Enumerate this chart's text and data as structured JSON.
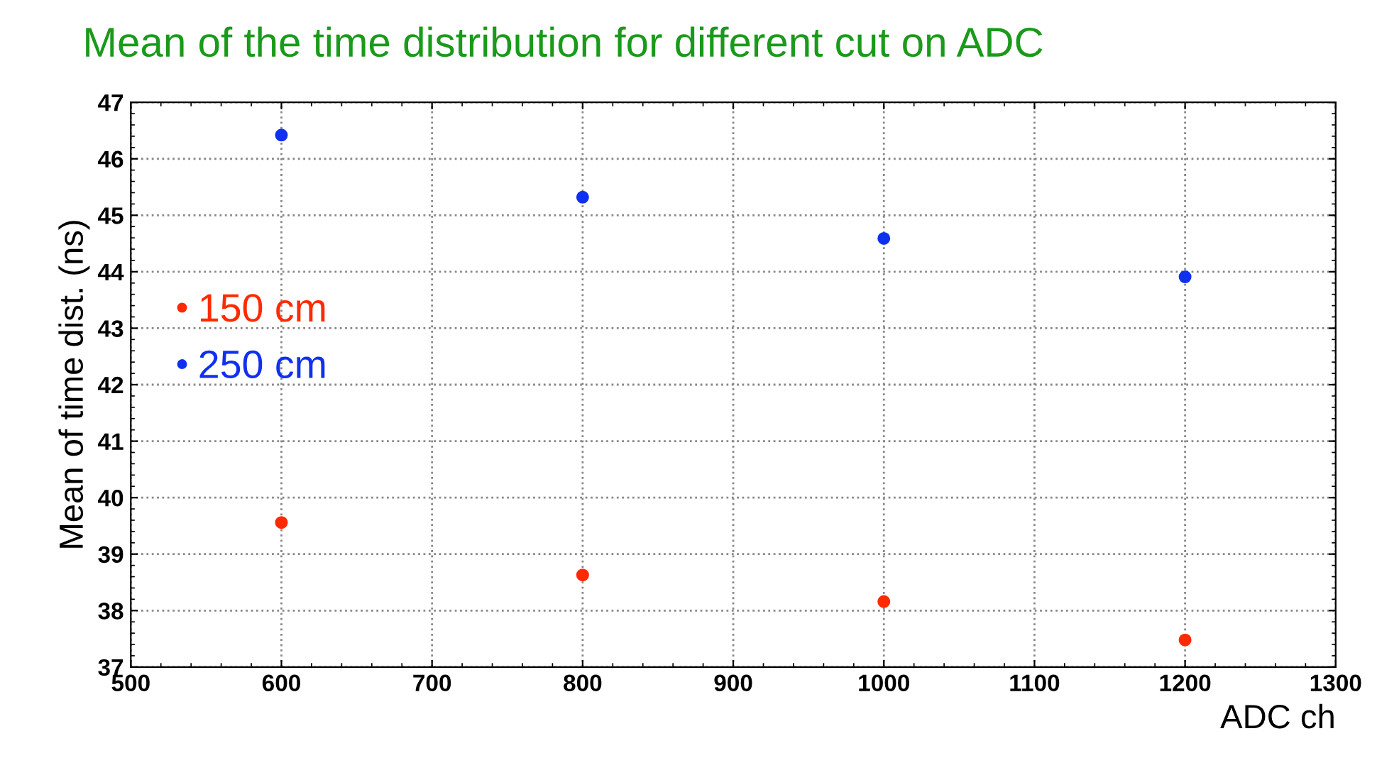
{
  "chart_data": {
    "type": "scatter",
    "title": "Mean of the time distribution for different cut on ADC",
    "xlabel": "ADC ch",
    "ylabel": "Mean of time dist. (ns)",
    "x": [
      600,
      800,
      1000,
      1200
    ],
    "series": [
      {
        "name": "150 cm",
        "color": "#ff2a00",
        "values": [
          39.56,
          38.63,
          38.16,
          37.48
        ]
      },
      {
        "name": "250 cm",
        "color": "#1030f0",
        "values": [
          46.42,
          45.32,
          44.59,
          43.91
        ]
      }
    ],
    "xlim": [
      500,
      1300
    ],
    "xticks": [
      500,
      600,
      700,
      800,
      900,
      1000,
      1100,
      1200,
      1300
    ],
    "ylim": [
      37,
      47
    ],
    "yticks": [
      37,
      38,
      39,
      40,
      41,
      42,
      43,
      44,
      45,
      46,
      47
    ],
    "grid": true,
    "legend": "left",
    "marker": "circle"
  }
}
